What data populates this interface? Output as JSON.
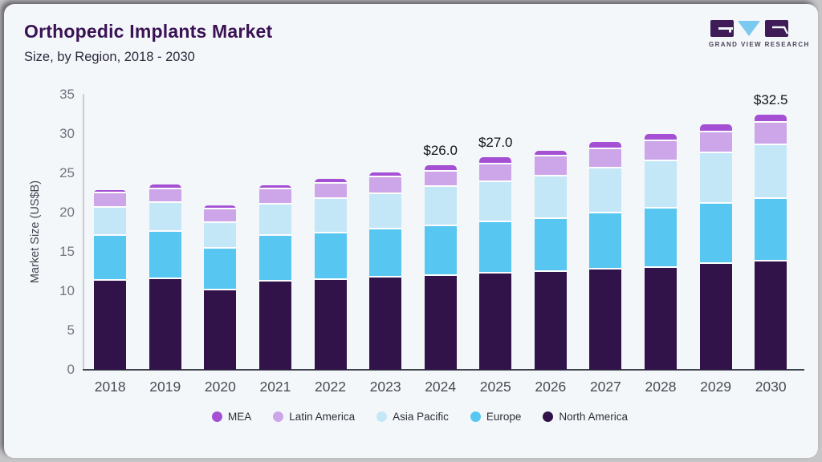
{
  "header": {
    "title": "Orthopedic Implants Market",
    "subtitle": "Size, by Region, 2018 - 2030"
  },
  "logo": {
    "text": "GRAND VIEW RESEARCH",
    "block_color": "#3f1b57",
    "triangle_color": "#7cc9ef"
  },
  "chart_data": {
    "type": "bar",
    "stacked": true,
    "title": "Orthopedic Implants Market Size, by Region, 2018 - 2030",
    "xlabel": "",
    "ylabel": "Market Size (US$B)",
    "ylim": [
      0,
      35
    ],
    "yticks": [
      0,
      5,
      10,
      15,
      20,
      25,
      30,
      35
    ],
    "grid": false,
    "legend_position": "bottom",
    "categories": [
      "2018",
      "2019",
      "2020",
      "2021",
      "2022",
      "2023",
      "2024",
      "2025",
      "2026",
      "2027",
      "2028",
      "2029",
      "2030"
    ],
    "series": [
      {
        "name": "North America",
        "color": "#311349",
        "values": [
          11.3,
          11.5,
          10.1,
          11.2,
          11.4,
          11.7,
          11.9,
          12.2,
          12.4,
          12.8,
          13.0,
          13.5,
          13.8
        ]
      },
      {
        "name": "Europe",
        "color": "#57c7f2",
        "values": [
          5.7,
          6.0,
          5.3,
          5.8,
          5.9,
          6.2,
          6.4,
          6.6,
          6.8,
          7.1,
          7.5,
          7.6,
          7.9
        ]
      },
      {
        "name": "Asia Pacific",
        "color": "#c4e7f8",
        "values": [
          3.6,
          3.7,
          3.3,
          4.0,
          4.4,
          4.4,
          5.0,
          5.1,
          5.4,
          5.7,
          6.0,
          6.5,
          6.9
        ]
      },
      {
        "name": "Latin America",
        "color": "#cda5e9",
        "values": [
          1.8,
          1.8,
          1.7,
          2.0,
          2.0,
          2.2,
          1.9,
          2.2,
          2.5,
          2.5,
          2.6,
          2.6,
          2.8
        ]
      },
      {
        "name": "MEA",
        "color": "#a44fd4",
        "values": [
          0.5,
          0.6,
          0.5,
          0.5,
          0.6,
          0.6,
          0.8,
          0.9,
          0.8,
          0.9,
          0.9,
          1.0,
          1.1
        ]
      }
    ],
    "totals": [
      22.9,
      23.6,
      20.9,
      23.5,
      24.3,
      25.1,
      26.0,
      27.0,
      27.9,
      29.0,
      30.0,
      31.2,
      32.5
    ],
    "bar_labels": [
      "",
      "",
      "",
      "",
      "",
      "",
      "$26.0",
      "$27.0",
      "",
      "",
      "",
      "",
      "$32.5"
    ],
    "legend": [
      {
        "label": "MEA",
        "color": "#a44fd4"
      },
      {
        "label": "Latin America",
        "color": "#cda5e9"
      },
      {
        "label": "Asia Pacific",
        "color": "#c4e7f8"
      },
      {
        "label": "Europe",
        "color": "#57c7f2"
      },
      {
        "label": "North America",
        "color": "#311349"
      }
    ]
  }
}
